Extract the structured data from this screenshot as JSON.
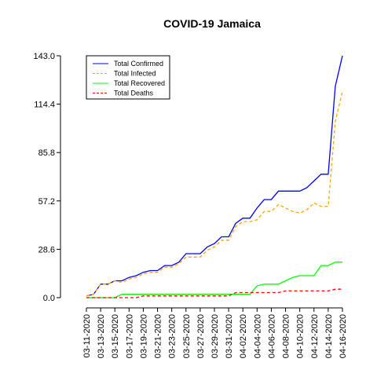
{
  "chart_data": {
    "type": "line",
    "title": "COVID-19 Jamaica",
    "xlabel": "",
    "ylabel": "",
    "grid": false,
    "legend_position": "top-left",
    "ylim": [
      0,
      143
    ],
    "yticks": [
      "0.0",
      "28.6",
      "57.2",
      "85.8",
      "114.4",
      "143.0"
    ],
    "x": [
      "03-11-2020",
      "03-12-2020",
      "03-13-2020",
      "03-14-2020",
      "03-15-2020",
      "03-16-2020",
      "03-17-2020",
      "03-18-2020",
      "03-19-2020",
      "03-20-2020",
      "03-21-2020",
      "03-22-2020",
      "03-23-2020",
      "03-24-2020",
      "03-25-2020",
      "03-26-2020",
      "03-27-2020",
      "03-28-2020",
      "03-29-2020",
      "03-30-2020",
      "03-31-2020",
      "04-01-2020",
      "04-02-2020",
      "04-03-2020",
      "04-04-2020",
      "04-05-2020",
      "04-06-2020",
      "04-07-2020",
      "04-08-2020",
      "04-09-2020",
      "04-10-2020",
      "04-11-2020",
      "04-12-2020",
      "04-13-2020",
      "04-14-2020",
      "04-15-2020",
      "04-16-2020"
    ],
    "xticks": [
      "03-11-2020",
      "03-13-2020",
      "03-15-2020",
      "03-17-2020",
      "03-19-2020",
      "03-21-2020",
      "03-23-2020",
      "03-25-2020",
      "03-27-2020",
      "03-29-2020",
      "03-31-2020",
      "04-02-2020",
      "04-04-2020",
      "04-06-2020",
      "04-08-2020",
      "04-10-2020",
      "04-12-2020",
      "04-14-2020",
      "04-16-2020"
    ],
    "series": [
      {
        "name": "Total Confirmed",
        "color": "#0000ff",
        "style": "solid",
        "values": [
          1,
          2,
          8,
          8,
          10,
          10,
          12,
          13,
          15,
          16,
          16,
          19,
          19,
          21,
          26,
          26,
          26,
          30,
          32,
          36,
          36,
          44,
          47,
          47,
          53,
          58,
          58,
          63,
          63,
          63,
          63,
          65,
          69,
          73,
          73,
          125,
          143
        ]
      },
      {
        "name": "Total Infected",
        "color": "#ffa500",
        "style": "dashed",
        "values": [
          1,
          2,
          8,
          8,
          10,
          9,
          11,
          12,
          14,
          15,
          15,
          18,
          18,
          20,
          24,
          24,
          24,
          28,
          30,
          34,
          34,
          42,
          45,
          45,
          46,
          51,
          51,
          55,
          53,
          51,
          50,
          52,
          56,
          54,
          54,
          104,
          122
        ]
      },
      {
        "name": "Total Recovered",
        "color": "#00ff00",
        "style": "solid",
        "values": [
          0,
          0,
          0,
          0,
          0,
          2,
          2,
          2,
          2,
          2,
          2,
          2,
          2,
          2,
          2,
          2,
          2,
          2,
          2,
          2,
          2,
          2,
          2,
          2,
          7,
          8,
          8,
          8,
          10,
          12,
          13,
          13,
          13,
          19,
          19,
          21,
          21
        ]
      },
      {
        "name": "Total Deaths",
        "color": "#ff0000",
        "style": "dashed",
        "values": [
          0,
          0,
          0,
          0,
          0,
          0,
          0,
          0,
          1,
          1,
          1,
          1,
          1,
          1,
          1,
          1,
          1,
          1,
          1,
          1,
          1,
          3,
          3,
          3,
          3,
          3,
          3,
          3,
          4,
          4,
          4,
          4,
          4,
          4,
          4,
          5,
          5
        ]
      }
    ]
  }
}
